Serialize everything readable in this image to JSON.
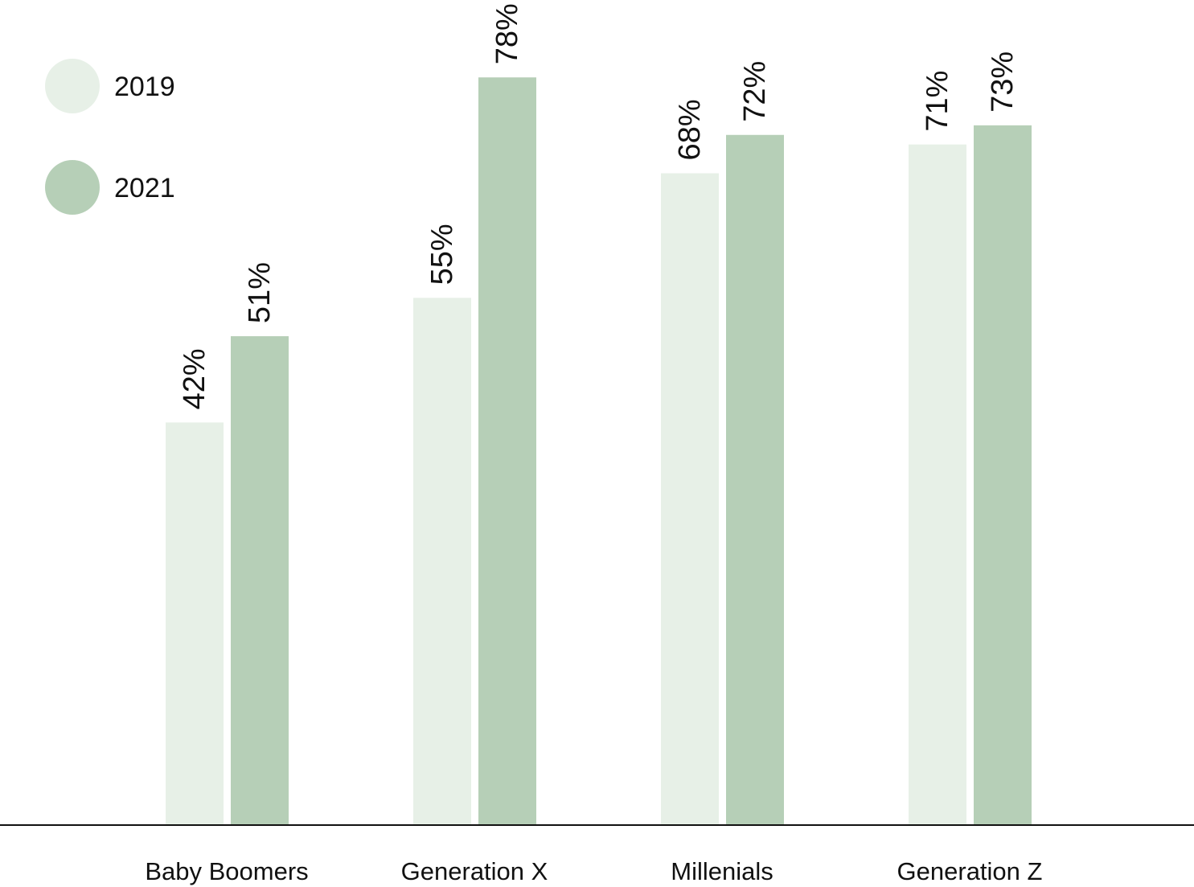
{
  "chart_data": {
    "type": "bar",
    "categories": [
      "Baby Boomers",
      "Generation X",
      "Millenials",
      "Generation Z"
    ],
    "series": [
      {
        "name": "2019",
        "color": "#e7f0e7",
        "values": [
          42,
          55,
          68,
          71
        ],
        "labels": [
          "42%",
          "55%",
          "68%",
          "71%"
        ]
      },
      {
        "name": "2021",
        "color": "#b6cfb7",
        "values": [
          51,
          78,
          72,
          73
        ],
        "labels": [
          "51%",
          "78%",
          "72%",
          "73%"
        ]
      }
    ],
    "title": "",
    "xlabel": "",
    "ylabel": "",
    "ylim": [
      0,
      100
    ],
    "grid": false,
    "legend_placement": "top-left",
    "axis_color": "#111111"
  }
}
